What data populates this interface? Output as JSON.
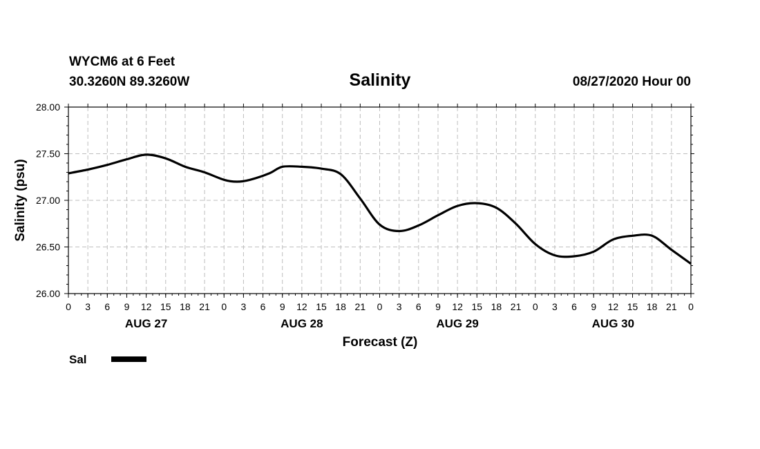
{
  "header": {
    "station": "WYCM6 at 6 Feet",
    "location": "30.3260N 89.3260W",
    "title": "Salinity",
    "run": "08/27/2020 Hour 00"
  },
  "chart_data": {
    "type": "line",
    "title": "Salinity",
    "xlabel": "Forecast (Z)",
    "ylabel": "Salinity (psu)",
    "ylim": [
      26.0,
      28.0
    ],
    "y_ticks": [
      "26.00",
      "26.50",
      "27.00",
      "27.50",
      "28.00"
    ],
    "x_unit": "forecast hour",
    "xlim": [
      0,
      96
    ],
    "x_tick_labels": [
      "0",
      "3",
      "6",
      "9",
      "12",
      "15",
      "18",
      "21",
      "0",
      "3",
      "6",
      "9",
      "12",
      "15",
      "18",
      "21",
      "0",
      "3",
      "6",
      "9",
      "12",
      "15",
      "18",
      "21",
      "0",
      "3",
      "6",
      "9",
      "12",
      "15",
      "18",
      "21",
      "0"
    ],
    "day_labels": [
      {
        "label": "AUG 27",
        "hour": 12
      },
      {
        "label": "AUG 28",
        "hour": 36
      },
      {
        "label": "AUG 29",
        "hour": 60
      },
      {
        "label": "AUG 30",
        "hour": 84
      }
    ],
    "grid": true,
    "legend_position": "bottom-left",
    "series": [
      {
        "name": "Sal",
        "color": "#000000",
        "x": [
          0,
          3,
          6,
          9,
          12,
          15,
          18,
          21,
          24,
          26,
          28,
          31,
          33,
          36,
          39,
          42,
          45,
          48,
          51,
          54,
          57,
          60,
          63,
          66,
          69,
          72,
          75,
          78,
          81,
          84,
          87,
          90,
          93,
          96
        ],
        "y": [
          27.29,
          27.33,
          27.38,
          27.44,
          27.49,
          27.45,
          27.36,
          27.3,
          27.22,
          27.2,
          27.22,
          27.29,
          27.36,
          27.36,
          27.34,
          27.28,
          27.02,
          26.74,
          26.67,
          26.73,
          26.84,
          26.94,
          26.97,
          26.92,
          26.75,
          26.53,
          26.41,
          26.4,
          26.45,
          26.58,
          26.62,
          26.62,
          26.47,
          26.32
        ]
      }
    ]
  }
}
